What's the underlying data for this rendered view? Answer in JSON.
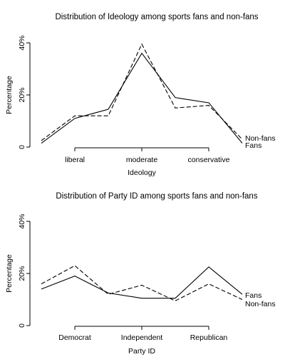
{
  "chart_data": [
    {
      "type": "line",
      "title": "Distribution of Ideology among sports fans and non-fans",
      "xlabel": "Ideology",
      "ylabel": "Percentage",
      "x_ticks": [
        {
          "x": 2,
          "label": "liberal"
        },
        {
          "x": 4,
          "label": "moderate"
        },
        {
          "x": 6,
          "label": "conservative"
        }
      ],
      "y_ticks": [
        {
          "value": 0,
          "label": "0"
        },
        {
          "value": 20,
          "label": "20%"
        },
        {
          "value": 40,
          "label": "40%"
        }
      ],
      "xlim": [
        1,
        7
      ],
      "ylim": [
        0,
        40
      ],
      "grid": false,
      "x": [
        1,
        2,
        3,
        4,
        5,
        6,
        7
      ],
      "series": [
        {
          "name": "Fans",
          "style": "solid",
          "values": [
            1.5,
            11,
            14.5,
            36,
            19,
            17,
            1.5
          ]
        },
        {
          "name": "Non-fans",
          "style": "dashed",
          "values": [
            2.5,
            12,
            12,
            39.5,
            15,
            16,
            3
          ]
        }
      ]
    },
    {
      "type": "line",
      "title": "Distribution of Party ID among sports fans and non-fans",
      "xlabel": "Party ID",
      "ylabel": "Percentage",
      "x_ticks": [
        {
          "x": 2,
          "label": "Democrat"
        },
        {
          "x": 4,
          "label": "Independent"
        },
        {
          "x": 6,
          "label": "Republican"
        }
      ],
      "y_ticks": [
        {
          "value": 0,
          "label": "0"
        },
        {
          "value": 20,
          "label": "20%"
        },
        {
          "value": 40,
          "label": "40%"
        }
      ],
      "xlim": [
        1,
        7
      ],
      "ylim": [
        0,
        40
      ],
      "grid": false,
      "x": [
        1,
        2,
        3,
        4,
        5,
        6,
        7
      ],
      "series": [
        {
          "name": "Fans",
          "style": "solid",
          "values": [
            14,
            19,
            12.5,
            10.5,
            10.5,
            22.5,
            12
          ]
        },
        {
          "name": "Non-fans",
          "style": "dashed",
          "values": [
            16,
            23,
            12,
            15.5,
            9.5,
            16,
            10
          ]
        }
      ]
    }
  ]
}
